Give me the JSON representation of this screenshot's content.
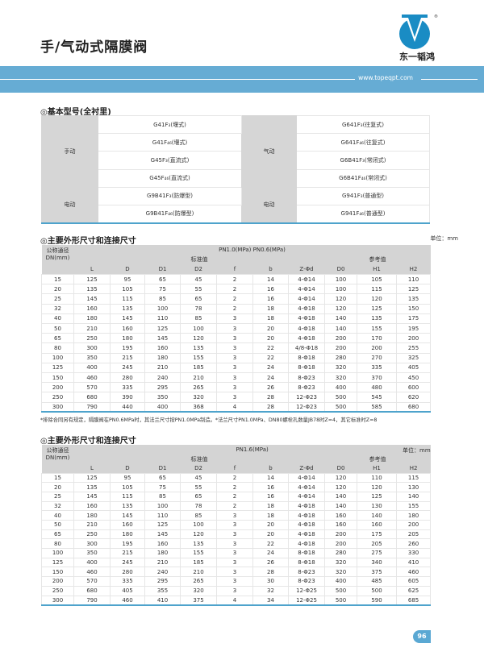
{
  "header": {
    "title": "手/气动式隔膜阀",
    "logo_text": "东一韬鸿",
    "url": "www.topeqpt.com",
    "accent": "#66acd4"
  },
  "basic_models": {
    "heading": "◎基本型号(全衬里)",
    "groups": [
      {
        "left_label": "手动",
        "left": [
          "G41F₃(堰式)",
          "G41F₄₆(堰式)",
          "G45F₃(直流式)",
          "G45F₄₆(直流式)"
        ],
        "right_label": "气动",
        "right": [
          "G641F₃(往复式)",
          "G641F₄₆(往复式)",
          "G6B41F₃(常闭式)",
          "G6B41F₄₆(常闭式)"
        ]
      },
      {
        "left_label": "电动",
        "left": [
          "G9B41F₃(防爆型)",
          "G9B41F₄₆(防爆型)"
        ],
        "right_label": "电动",
        "right": [
          "G941F₃(普通型)",
          "G941F₄₆(普通型)"
        ]
      }
    ]
  },
  "columns": [
    "L",
    "D",
    "D1",
    "D2",
    "f",
    "b",
    "Z-Φd",
    "D0",
    "H1",
    "H2"
  ],
  "dn_label": "公称通径\nDN(mm)",
  "std_label": "标准值",
  "ref_label": "参考值",
  "unit": "单位：mm",
  "table_a": {
    "heading": "◎主要外形尺寸和连接尺寸",
    "pressure": "PN1.0(MPa) PN0.6(MPa)",
    "rows": [
      [
        "15",
        "125",
        "95",
        "65",
        "45",
        "2",
        "14",
        "4-Φ14",
        "100",
        "105",
        "110"
      ],
      [
        "20",
        "135",
        "105",
        "75",
        "55",
        "2",
        "16",
        "4-Φ14",
        "100",
        "115",
        "125"
      ],
      [
        "25",
        "145",
        "115",
        "85",
        "65",
        "2",
        "16",
        "4-Φ14",
        "120",
        "120",
        "135"
      ],
      [
        "32",
        "160",
        "135",
        "100",
        "78",
        "2",
        "18",
        "4-Φ18",
        "120",
        "125",
        "150"
      ],
      [
        "40",
        "180",
        "145",
        "110",
        "85",
        "3",
        "18",
        "4-Φ18",
        "140",
        "135",
        "175"
      ],
      [
        "50",
        "210",
        "160",
        "125",
        "100",
        "3",
        "20",
        "4-Φ18",
        "140",
        "155",
        "195"
      ],
      [
        "65",
        "250",
        "180",
        "145",
        "120",
        "3",
        "20",
        "4-Φ18",
        "200",
        "170",
        "200"
      ],
      [
        "80",
        "300",
        "195",
        "160",
        "135",
        "3",
        "22",
        "4/8-Φ18",
        "200",
        "200",
        "255"
      ],
      [
        "100",
        "350",
        "215",
        "180",
        "155",
        "3",
        "22",
        "8-Φ18",
        "280",
        "270",
        "325"
      ],
      [
        "125",
        "400",
        "245",
        "210",
        "185",
        "3",
        "24",
        "8-Φ18",
        "320",
        "335",
        "405"
      ],
      [
        "150",
        "460",
        "280",
        "240",
        "210",
        "3",
        "24",
        "8-Φ23",
        "320",
        "370",
        "450"
      ],
      [
        "200",
        "570",
        "335",
        "295",
        "265",
        "3",
        "26",
        "8-Φ23",
        "400",
        "480",
        "600"
      ],
      [
        "250",
        "680",
        "390",
        "350",
        "320",
        "3",
        "28",
        "12-Φ23",
        "500",
        "545",
        "620"
      ],
      [
        "300",
        "790",
        "440",
        "400",
        "368",
        "4",
        "28",
        "12-Φ23",
        "500",
        "585",
        "680"
      ]
    ],
    "footnote": "*排除合同另有规定，隔膜阀在PN0.6MPa时，其法兰尺寸按PN1.0MPa制造。*法兰尺寸PN1.0MPa、DN80螺栓孔数量JB78时Z=4，其它标准时Z=8"
  },
  "table_b": {
    "heading": "◎主要外形尺寸和连接尺寸",
    "pressure": "PN1.6(MPa)",
    "rows": [
      [
        "15",
        "125",
        "95",
        "65",
        "45",
        "2",
        "14",
        "4-Φ14",
        "120",
        "110",
        "115"
      ],
      [
        "20",
        "135",
        "105",
        "75",
        "55",
        "2",
        "16",
        "4-Φ14",
        "120",
        "120",
        "130"
      ],
      [
        "25",
        "145",
        "115",
        "85",
        "65",
        "2",
        "16",
        "4-Φ14",
        "140",
        "125",
        "140"
      ],
      [
        "32",
        "160",
        "135",
        "100",
        "78",
        "2",
        "18",
        "4-Φ18",
        "140",
        "130",
        "155"
      ],
      [
        "40",
        "180",
        "145",
        "110",
        "85",
        "3",
        "18",
        "4-Φ18",
        "160",
        "140",
        "180"
      ],
      [
        "50",
        "210",
        "160",
        "125",
        "100",
        "3",
        "20",
        "4-Φ18",
        "160",
        "160",
        "200"
      ],
      [
        "65",
        "250",
        "180",
        "145",
        "120",
        "3",
        "20",
        "4-Φ18",
        "200",
        "175",
        "205"
      ],
      [
        "80",
        "300",
        "195",
        "160",
        "135",
        "3",
        "22",
        "4-Φ18",
        "200",
        "205",
        "260"
      ],
      [
        "100",
        "350",
        "215",
        "180",
        "155",
        "3",
        "24",
        "8-Φ18",
        "280",
        "275",
        "330"
      ],
      [
        "125",
        "400",
        "245",
        "210",
        "185",
        "3",
        "26",
        "8-Φ18",
        "320",
        "340",
        "410"
      ],
      [
        "150",
        "460",
        "280",
        "240",
        "210",
        "3",
        "28",
        "8-Φ23",
        "320",
        "375",
        "460"
      ],
      [
        "200",
        "570",
        "335",
        "295",
        "265",
        "3",
        "30",
        "8-Φ23",
        "400",
        "485",
        "605"
      ],
      [
        "250",
        "680",
        "405",
        "355",
        "320",
        "3",
        "32",
        "12-Φ25",
        "500",
        "500",
        "625"
      ],
      [
        "300",
        "790",
        "460",
        "410",
        "375",
        "4",
        "34",
        "12-Φ25",
        "500",
        "590",
        "685"
      ]
    ]
  },
  "page_number": "96"
}
